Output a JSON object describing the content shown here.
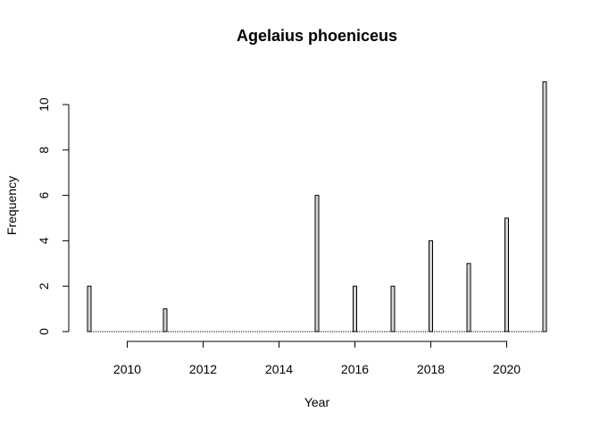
{
  "chart_data": {
    "type": "bar",
    "title": "Agelaius phoeniceus",
    "xlabel": "Year",
    "ylabel": "Frequency",
    "x_ticks": [
      "2010",
      "2012",
      "2014",
      "2016",
      "2018",
      "2020"
    ],
    "y_ticks": [
      "0",
      "2",
      "4",
      "6",
      "8",
      "10"
    ],
    "xlim": [
      2009,
      2021
    ],
    "ylim": [
      0,
      11
    ],
    "grid": false,
    "colors": {
      "bar_fill": "#d3d3d3",
      "bar_stroke": "#000000"
    },
    "points": [
      {
        "x": 2009,
        "y": 2
      },
      {
        "x": 2011,
        "y": 1
      },
      {
        "x": 2015,
        "y": 6
      },
      {
        "x": 2016,
        "y": 2
      },
      {
        "x": 2017,
        "y": 2
      },
      {
        "x": 2018,
        "y": 4
      },
      {
        "x": 2019,
        "y": 3
      },
      {
        "x": 2020,
        "y": 5
      },
      {
        "x": 2021,
        "y": 11
      }
    ]
  }
}
